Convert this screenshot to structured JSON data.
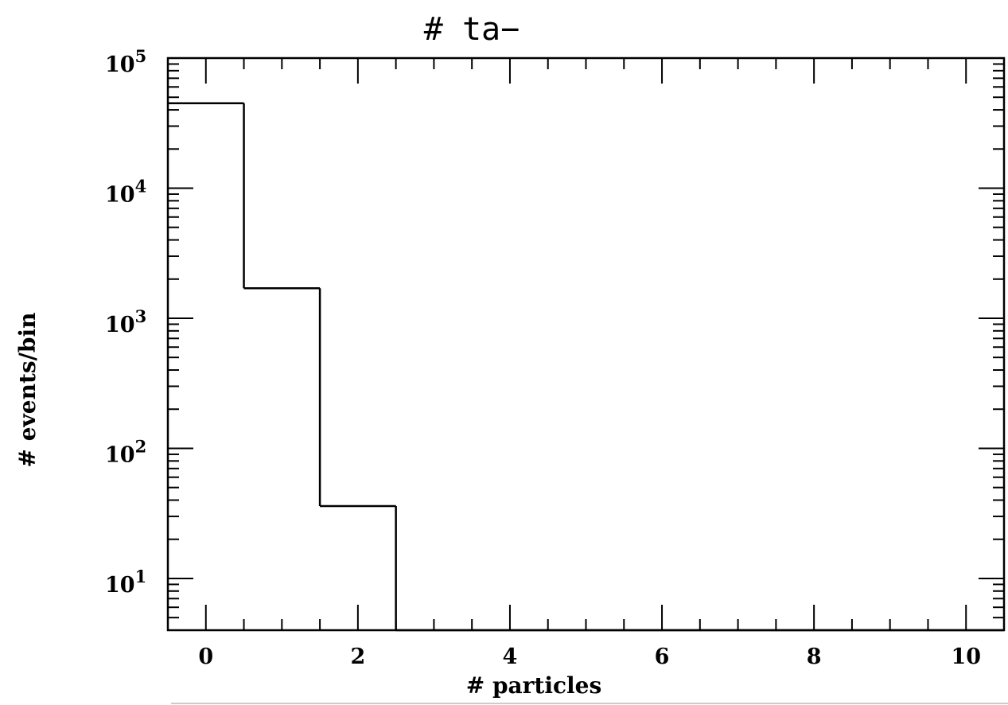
{
  "chart_data": {
    "type": "histogram",
    "title": "# ta−",
    "xlabel": "# particles",
    "ylabel": "# events/bin",
    "xlim": [
      -0.5,
      10.5
    ],
    "ylim": [
      4,
      100000
    ],
    "yscale": "log",
    "grid": false,
    "x_ticks": [
      {
        "value": 0,
        "label": "0"
      },
      {
        "value": 2,
        "label": "2"
      },
      {
        "value": 4,
        "label": "4"
      },
      {
        "value": 6,
        "label": "6"
      },
      {
        "value": 8,
        "label": "8"
      },
      {
        "value": 10,
        "label": "10"
      }
    ],
    "y_ticks": [
      {
        "value": 10,
        "base": "10",
        "exp": "1"
      },
      {
        "value": 100,
        "base": "10",
        "exp": "2"
      },
      {
        "value": 1000,
        "base": "10",
        "exp": "3"
      },
      {
        "value": 10000,
        "base": "10",
        "exp": "4"
      },
      {
        "value": 100000,
        "base": "10",
        "exp": "5"
      }
    ],
    "bins": [
      {
        "x0": -0.5,
        "x1": 0.5,
        "value": 45000
      },
      {
        "x0": 0.5,
        "x1": 1.5,
        "value": 1700
      },
      {
        "x0": 1.5,
        "x1": 2.5,
        "value": 36
      },
      {
        "x0": 2.5,
        "x1": 10.5,
        "value": 0
      }
    ],
    "line_color": "#000000"
  }
}
